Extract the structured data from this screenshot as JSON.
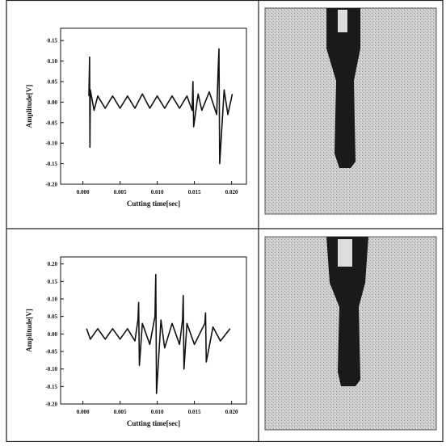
{
  "chart_data": [
    {
      "type": "line",
      "xlabel": "Cutting time[sec]",
      "ylabel": "Amplitude[V]",
      "xlim": [
        -0.003,
        0.022
      ],
      "ylim": [
        -0.2,
        0.18
      ],
      "xticks": [
        {
          "value": 0,
          "label": "0.000"
        },
        {
          "value": 0.005,
          "label": "0.005"
        },
        {
          "value": 0.01,
          "label": "0.010"
        },
        {
          "value": 0.015,
          "label": "0.015"
        },
        {
          "value": 0.02,
          "label": "0.020"
        }
      ],
      "yticks": [
        {
          "value": -0.2,
          "label": "-0.20"
        },
        {
          "value": -0.15,
          "label": "-0.15"
        },
        {
          "value": -0.1,
          "label": "-0.10"
        },
        {
          "value": -0.05,
          "label": "-0.05"
        },
        {
          "value": 0,
          "label": "0.00"
        },
        {
          "value": 0.05,
          "label": "0.05"
        },
        {
          "value": 0.1,
          "label": "0.10"
        },
        {
          "value": 0.15,
          "label": "0.15"
        }
      ],
      "color": "#111111",
      "x": [
        0.0008,
        0.0009,
        0.00095,
        0.001,
        0.0015,
        0.002,
        0.003,
        0.004,
        0.005,
        0.006,
        0.007,
        0.008,
        0.009,
        0.01,
        0.011,
        0.012,
        0.013,
        0.014,
        0.0147,
        0.0148,
        0.0149,
        0.0155,
        0.016,
        0.017,
        0.018,
        0.0182,
        0.0183,
        0.0184,
        0.019,
        0.0195,
        0.0201
      ],
      "values": [
        0.015,
        0.11,
        -0.11,
        0.03,
        -0.02,
        0.015,
        -0.015,
        0.015,
        -0.015,
        0.015,
        -0.015,
        0.02,
        -0.015,
        0.015,
        -0.015,
        0.015,
        -0.015,
        0.015,
        -0.02,
        0.05,
        -0.06,
        0.02,
        -0.02,
        0.025,
        -0.03,
        0.08,
        0.13,
        -0.15,
        0.03,
        -0.03,
        0.02
      ]
    },
    {
      "type": "line",
      "xlabel": "Cutting time[sec]",
      "ylabel": "Amplitude[V]",
      "xlim": [
        -0.003,
        0.022
      ],
      "ylim": [
        -0.2,
        0.22
      ],
      "xticks": [
        {
          "value": 0,
          "label": "0.000"
        },
        {
          "value": 0.005,
          "label": "0.005"
        },
        {
          "value": 0.01,
          "label": "0.010"
        },
        {
          "value": 0.015,
          "label": "0.015"
        },
        {
          "value": 0.02,
          "label": "0.020"
        }
      ],
      "yticks": [
        {
          "value": -0.2,
          "label": "-0.20"
        },
        {
          "value": -0.15,
          "label": "-0.15"
        },
        {
          "value": -0.1,
          "label": "-0.10"
        },
        {
          "value": -0.05,
          "label": "-0.05"
        },
        {
          "value": 0,
          "label": "0.00"
        },
        {
          "value": 0.05,
          "label": "0.05"
        },
        {
          "value": 0.1,
          "label": "0.10"
        },
        {
          "value": 0.15,
          "label": "0.15"
        },
        {
          "value": 0.2,
          "label": "0.20"
        }
      ],
      "color": "#111111",
      "x": [
        0.0005,
        0.001,
        0.002,
        0.003,
        0.004,
        0.005,
        0.006,
        0.007,
        0.0074,
        0.0075,
        0.0076,
        0.008,
        0.009,
        0.0097,
        0.0098,
        0.0099,
        0.0105,
        0.011,
        0.012,
        0.013,
        0.0134,
        0.0135,
        0.0136,
        0.014,
        0.015,
        0.0164,
        0.0165,
        0.0166,
        0.0175,
        0.0185,
        0.0198
      ],
      "values": [
        0.015,
        -0.015,
        0.015,
        -0.015,
        0.015,
        -0.015,
        0.015,
        -0.02,
        0.04,
        0.09,
        -0.09,
        0.03,
        -0.03,
        0.05,
        0.17,
        -0.17,
        0.04,
        -0.04,
        0.03,
        -0.03,
        0.04,
        0.11,
        -0.1,
        0.03,
        -0.03,
        0.03,
        0.06,
        -0.08,
        0.02,
        -0.02,
        0.015
      ]
    }
  ]
}
